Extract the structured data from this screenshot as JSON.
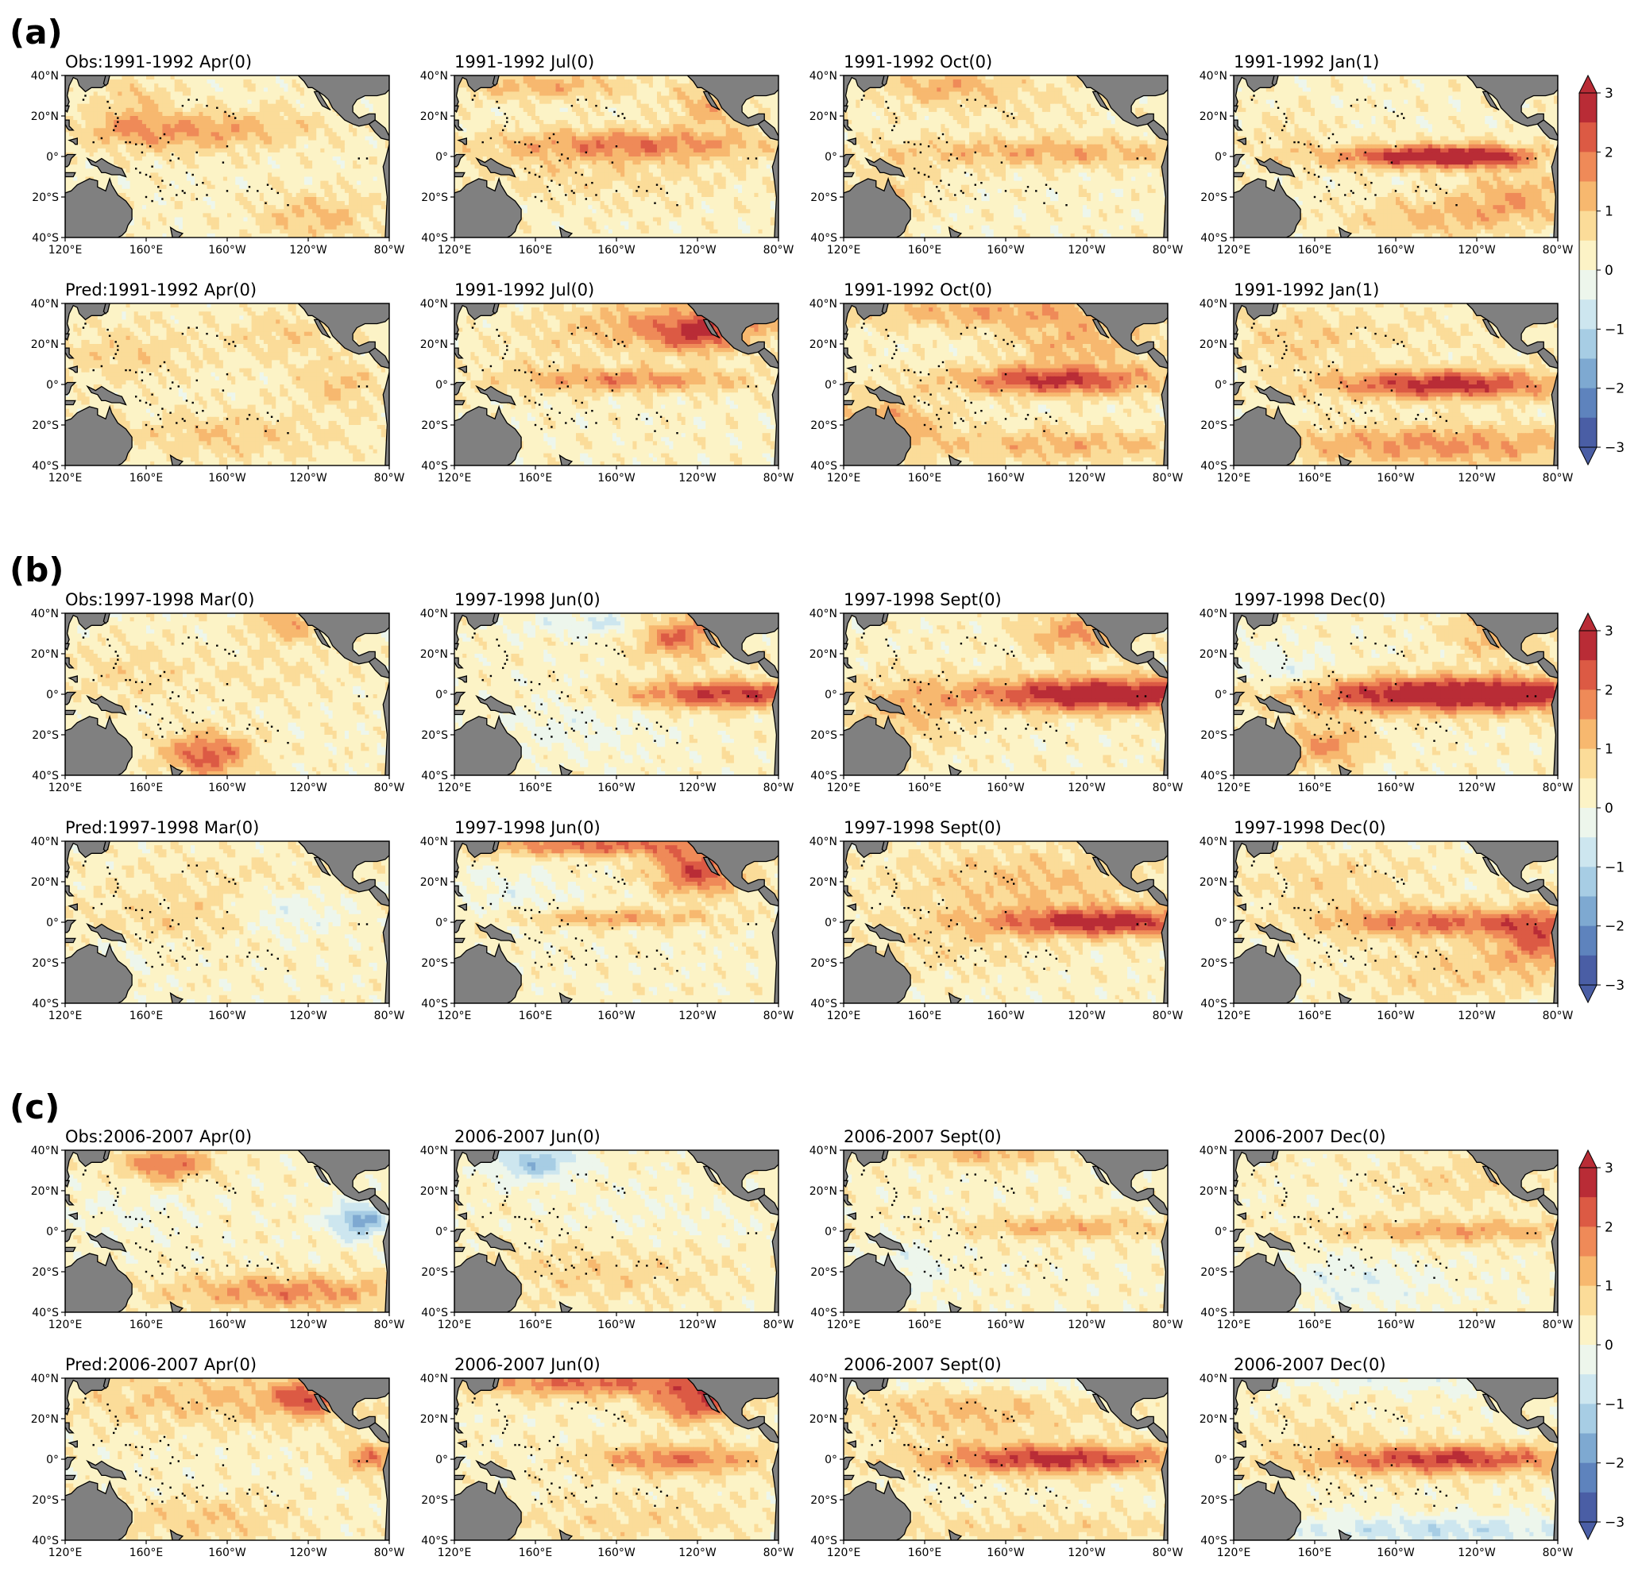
{
  "panels": [
    {
      "label": "(a)",
      "rows": [
        {
          "kind": "obs",
          "titles": [
            "Obs:1991-1992 Apr(0)",
            "1991-1992 Jul(0)",
            "1991-1992 Oct(0)",
            "1991-1992 Jan(1)"
          ]
        },
        {
          "kind": "pred",
          "titles": [
            "Pred:1991-1992 Apr(0)",
            "1991-1992 Jul(0)",
            "1991-1992 Oct(0)",
            "1991-1992 Jan(1)"
          ]
        }
      ]
    },
    {
      "label": "(b)",
      "rows": [
        {
          "kind": "obs",
          "titles": [
            "Obs:1997-1998 Mar(0)",
            "1997-1998 Jun(0)",
            "1997-1998 Sept(0)",
            "1997-1998 Dec(0)"
          ]
        },
        {
          "kind": "pred",
          "titles": [
            "Pred:1997-1998 Mar(0)",
            "1997-1998 Jun(0)",
            "1997-1998 Sept(0)",
            "1997-1998 Dec(0)"
          ]
        }
      ]
    },
    {
      "label": "(c)",
      "rows": [
        {
          "kind": "obs",
          "titles": [
            "Obs:2006-2007 Apr(0)",
            "2006-2007 Jun(0)",
            "2006-2007 Sept(0)",
            "2006-2007 Dec(0)"
          ]
        },
        {
          "kind": "pred",
          "titles": [
            "Pred:2006-2007 Apr(0)",
            "2006-2007 Jun(0)",
            "2006-2007 Sept(0)",
            "2006-2007 Dec(0)"
          ]
        }
      ]
    }
  ],
  "chart_data": {
    "type": "heatmap",
    "description_type": "filled contour maps",
    "x_ticks": [
      "120°E",
      "160°E",
      "160°W",
      "120°W",
      "80°W"
    ],
    "y_ticks": [
      "40°N",
      "20°N",
      "0°",
      "20°S",
      "40°S"
    ],
    "lon_range": [
      120,
      280
    ],
    "lat_range": [
      -40,
      40
    ],
    "colorbar": {
      "ticks": [
        "3",
        "2",
        "1",
        "0",
        "−1",
        "−2",
        "−3"
      ],
      "range": [
        -3,
        3
      ],
      "levels": [
        -3,
        -2.5,
        -2,
        -1.5,
        -1,
        -0.5,
        0,
        0.5,
        1,
        1.5,
        2,
        2.5,
        3
      ],
      "colors": [
        "#4a5ea5",
        "#5e83bd",
        "#7ea9d1",
        "#a7cde4",
        "#cde6ef",
        "#edf6ec",
        "#fcf3c6",
        "#fbdc99",
        "#f7b86f",
        "#ef8a58",
        "#dc5a44",
        "#b92c36"
      ],
      "extend": "both"
    },
    "land_color": "#808080",
    "anomaly_patterns": [
      {
        "blobs": [
          [
            -2,
            195,
            15,
            35,
            6,
            0.9
          ],
          [
            -2,
            155,
            30,
            12,
            6,
            0.7
          ],
          [
            -1,
            175,
            8,
            30,
            6,
            0.6
          ],
          [
            -1,
            245,
            -30,
            20,
            8,
            0.9
          ],
          [
            -2,
            150,
            15,
            15,
            6,
            0.7
          ]
        ]
      },
      {
        "blobs": [
          [
            0,
            210,
            6,
            45,
            5,
            1.4
          ],
          [
            -2,
            165,
            35,
            30,
            5,
            1.0
          ],
          [
            -2,
            245,
            25,
            12,
            8,
            1.0
          ],
          [
            -1,
            190,
            -5,
            50,
            12,
            0.5
          ]
        ]
      },
      {
        "blobs": [
          [
            0,
            220,
            2,
            55,
            5,
            1.1
          ],
          [
            -1,
            200,
            30,
            40,
            10,
            0.3
          ],
          [
            -2,
            170,
            35,
            20,
            6,
            0.9
          ],
          [
            -1,
            145,
            -15,
            15,
            10,
            0.5
          ]
        ]
      },
      {
        "blobs": [
          [
            0,
            210,
            0,
            30,
            4,
            2.5
          ],
          [
            0,
            245,
            0,
            20,
            4,
            1.6
          ],
          [
            -1,
            260,
            -20,
            18,
            8,
            1.1
          ],
          [
            -2,
            220,
            -30,
            30,
            7,
            0.9
          ],
          [
            -1,
            145,
            8,
            14,
            10,
            0.4
          ]
        ]
      },
      {
        "blobs": [
          [
            -1,
            150,
            15,
            25,
            10,
            0.6
          ],
          [
            -2,
            200,
            -25,
            35,
            8,
            0.7
          ],
          [
            -1,
            255,
            0,
            15,
            8,
            0.8
          ],
          [
            -2,
            230,
            25,
            20,
            8,
            0.6
          ]
        ]
      },
      {
        "blobs": [
          [
            0,
            210,
            2,
            40,
            4,
            1.4
          ],
          [
            -2,
            230,
            30,
            40,
            8,
            1.3
          ],
          [
            -2,
            240,
            24,
            15,
            6,
            1.5
          ],
          [
            -1,
            170,
            10,
            30,
            10,
            0.3
          ]
        ]
      },
      {
        "blobs": [
          [
            0,
            225,
            2,
            35,
            5,
            2.4
          ],
          [
            -2,
            200,
            36,
            60,
            6,
            1.1
          ],
          [
            -1,
            140,
            -20,
            20,
            10,
            1.2
          ],
          [
            -2,
            235,
            20,
            25,
            8,
            1.0
          ],
          [
            -2,
            230,
            -30,
            45,
            6,
            1.0
          ]
        ]
      },
      {
        "blobs": [
          [
            0,
            225,
            0,
            40,
            5,
            2.6
          ],
          [
            -2,
            220,
            -30,
            60,
            7,
            1.4
          ],
          [
            -1,
            150,
            20,
            20,
            10,
            0.5
          ],
          [
            -2,
            200,
            25,
            50,
            8,
            0.3
          ]
        ]
      },
      {
        "blobs": [
          [
            -2,
            190,
            -30,
            15,
            8,
            2.0
          ],
          [
            -1,
            150,
            10,
            20,
            10,
            0.5
          ],
          [
            -2,
            230,
            35,
            12,
            6,
            1.2
          ],
          [
            -1,
            220,
            10,
            25,
            10,
            0.3
          ]
        ]
      },
      {
        "blobs": [
          [
            0,
            255,
            0,
            35,
            5,
            2.4
          ],
          [
            -2,
            230,
            30,
            15,
            8,
            2.0
          ],
          [
            -2,
            200,
            35,
            30,
            5,
            -0.8
          ],
          [
            -1,
            180,
            -15,
            30,
            12,
            -0.4
          ]
        ]
      },
      {
        "blobs": [
          [
            0,
            250,
            0,
            50,
            6,
            3.0
          ],
          [
            -2,
            235,
            30,
            18,
            8,
            1.3
          ],
          [
            -1,
            150,
            -10,
            20,
            12,
            0.8
          ]
        ]
      },
      {
        "blobs": [
          [
            0,
            235,
            0,
            60,
            6,
            3.3
          ],
          [
            -2,
            250,
            30,
            15,
            8,
            1.2
          ],
          [
            -1,
            165,
            -25,
            15,
            8,
            1.3
          ],
          [
            -1,
            145,
            10,
            18,
            10,
            -0.6
          ]
        ]
      },
      {
        "blobs": [
          [
            0,
            180,
            2,
            40,
            8,
            0.5
          ],
          [
            -2,
            230,
            5,
            20,
            8,
            -0.8
          ],
          [
            -2,
            200,
            20,
            40,
            10,
            0.3
          ],
          [
            -1,
            145,
            -20,
            15,
            10,
            -0.3
          ]
        ]
      },
      {
        "blobs": [
          [
            0,
            200,
            2,
            35,
            3,
            1.2
          ],
          [
            -2,
            240,
            25,
            15,
            8,
            2.2
          ],
          [
            -2,
            190,
            38,
            45,
            4,
            1.8
          ],
          [
            -1,
            150,
            15,
            20,
            10,
            -0.4
          ]
        ]
      },
      {
        "blobs": [
          [
            0,
            250,
            0,
            40,
            5,
            2.6
          ],
          [
            -2,
            210,
            20,
            45,
            12,
            0.8
          ],
          [
            -1,
            170,
            -10,
            30,
            10,
            0.4
          ]
        ]
      },
      {
        "blobs": [
          [
            0,
            220,
            0,
            40,
            5,
            1.8
          ],
          [
            0,
            270,
            -8,
            15,
            10,
            1.8
          ],
          [
            -2,
            170,
            20,
            30,
            10,
            0.5
          ],
          [
            -2,
            230,
            -25,
            30,
            10,
            0.6
          ]
        ]
      },
      {
        "blobs": [
          [
            -2,
            170,
            33,
            15,
            6,
            1.8
          ],
          [
            -2,
            230,
            -30,
            40,
            6,
            1.5
          ],
          [
            -1,
            265,
            5,
            10,
            6,
            -2.0
          ],
          [
            -1,
            150,
            10,
            25,
            10,
            -0.3
          ]
        ]
      },
      {
        "blobs": [
          [
            -2,
            160,
            34,
            15,
            6,
            -1.6
          ],
          [
            -1,
            190,
            -20,
            40,
            10,
            0.6
          ],
          [
            -1,
            220,
            5,
            40,
            12,
            -0.2
          ]
        ]
      },
      {
        "blobs": [
          [
            0,
            230,
            2,
            35,
            4,
            1.1
          ],
          [
            -2,
            190,
            38,
            25,
            4,
            1.0
          ],
          [
            -1,
            150,
            -20,
            15,
            10,
            -0.6
          ]
        ]
      },
      {
        "blobs": [
          [
            0,
            230,
            0,
            45,
            4,
            1.2
          ],
          [
            -2,
            230,
            25,
            30,
            8,
            0.5
          ],
          [
            -1,
            180,
            -25,
            30,
            10,
            -0.6
          ]
        ]
      },
      {
        "blobs": [
          [
            -2,
            195,
            30,
            50,
            10,
            0.8
          ],
          [
            -2,
            240,
            30,
            12,
            6,
            1.8
          ],
          [
            -2,
            190,
            -30,
            30,
            8,
            0.7
          ],
          [
            -1,
            270,
            0,
            10,
            6,
            1.5
          ]
        ]
      },
      {
        "blobs": [
          [
            0,
            230,
            0,
            30,
            5,
            1.7
          ],
          [
            -2,
            240,
            28,
            15,
            7,
            2.1
          ],
          [
            -2,
            190,
            38,
            45,
            5,
            1.8
          ],
          [
            -2,
            210,
            -30,
            40,
            8,
            0.5
          ]
        ]
      },
      {
        "blobs": [
          [
            0,
            225,
            0,
            45,
            5,
            2.5
          ],
          [
            -2,
            210,
            38,
            60,
            5,
            -0.6
          ],
          [
            -2,
            180,
            25,
            40,
            10,
            0.9
          ],
          [
            -2,
            210,
            -35,
            60,
            6,
            0.5
          ]
        ]
      },
      {
        "blobs": [
          [
            0,
            225,
            0,
            45,
            5,
            2.4
          ],
          [
            -2,
            220,
            -35,
            60,
            5,
            -1.1
          ],
          [
            -2,
            200,
            38,
            50,
            4,
            -0.5
          ],
          [
            -1,
            160,
            15,
            20,
            10,
            0.3
          ]
        ]
      }
    ]
  }
}
